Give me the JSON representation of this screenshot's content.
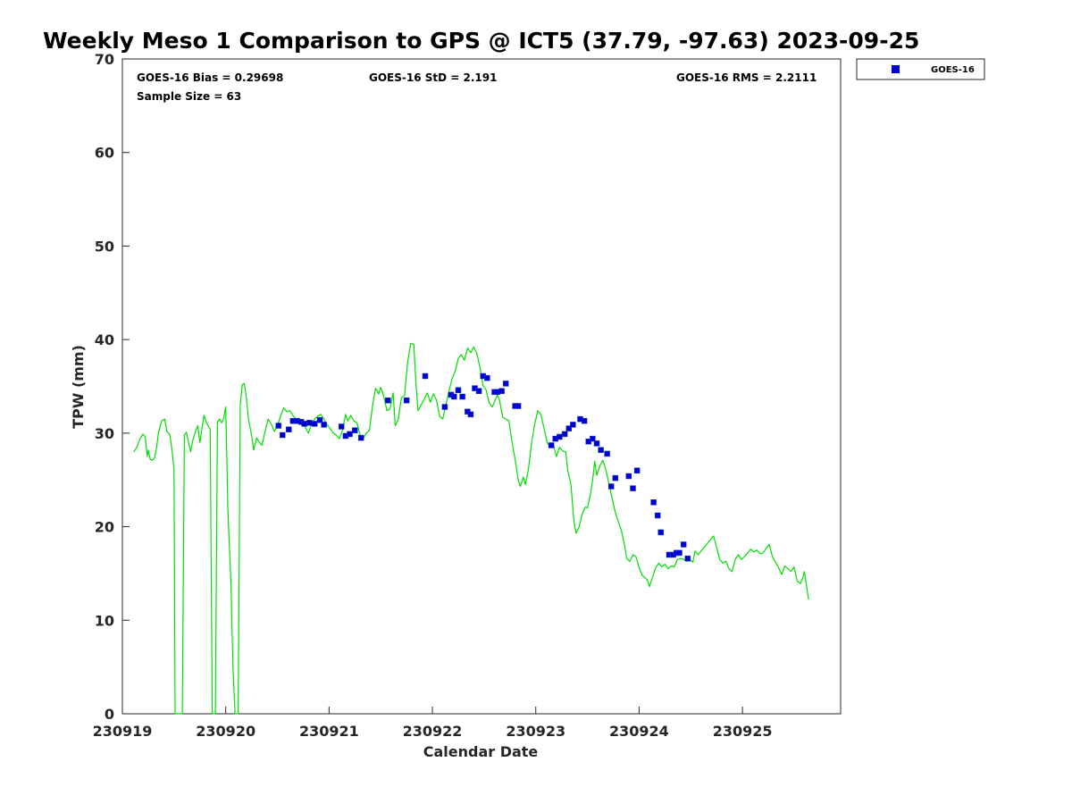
{
  "chart_data": {
    "type": "scatter",
    "title": "Weekly Meso 1 Comparison to GPS @ ICT5 (37.79, -97.63) 2023-09-25",
    "xlabel": "Calendar Date",
    "ylabel": "TPW (mm)",
    "xlim": [
      0,
      6.95
    ],
    "ylim": [
      0,
      70
    ],
    "y_ticks": [
      0,
      10,
      20,
      30,
      40,
      50,
      60,
      70
    ],
    "x_ticks": [
      {
        "value": 0,
        "label": "230919"
      },
      {
        "value": 1,
        "label": "230920"
      },
      {
        "value": 2,
        "label": "230921"
      },
      {
        "value": 3,
        "label": "230922"
      },
      {
        "value": 4,
        "label": "230923"
      },
      {
        "value": 5,
        "label": "230924"
      },
      {
        "value": 6,
        "label": "230925"
      }
    ],
    "stats": {
      "bias": "GOES-16 Bias = 0.29698",
      "std": "GOES-16 StD = 2.191",
      "rms": "GOES-16 RMS = 2.2111",
      "sample": "Sample Size = 63"
    },
    "legend": {
      "label": "GOES-16",
      "position": "top-right",
      "marker_color": "#0000cc"
    },
    "colors": {
      "gps_line": "#00dd00",
      "goes_marker": "#0000cc",
      "goes_marker_edge": "#1a3fd6",
      "axis": "#262626"
    },
    "series": [
      {
        "name": "GPS",
        "style": "line",
        "points": [
          [
            0.11,
            28.0
          ],
          [
            0.14,
            28.5
          ],
          [
            0.17,
            29.4
          ],
          [
            0.2,
            29.9
          ],
          [
            0.22,
            29.6
          ],
          [
            0.24,
            27.5
          ],
          [
            0.25,
            28.2
          ],
          [
            0.27,
            27.2
          ],
          [
            0.29,
            27.1
          ],
          [
            0.31,
            27.3
          ],
          [
            0.33,
            28.4
          ],
          [
            0.35,
            30.1
          ],
          [
            0.38,
            31.3
          ],
          [
            0.41,
            31.5
          ],
          [
            0.43,
            30.2
          ],
          [
            0.46,
            29.8
          ],
          [
            0.48,
            28.2
          ],
          [
            0.5,
            26.1
          ],
          [
            0.51,
            0
          ],
          [
            0.58,
            0
          ],
          [
            0.6,
            29.8
          ],
          [
            0.62,
            30.1
          ],
          [
            0.64,
            29.0
          ],
          [
            0.66,
            28.0
          ],
          [
            0.68,
            29.2
          ],
          [
            0.71,
            30.3
          ],
          [
            0.73,
            30.8
          ],
          [
            0.75,
            29.0
          ],
          [
            0.77,
            30.5
          ],
          [
            0.79,
            31.9
          ],
          [
            0.81,
            31.2
          ],
          [
            0.83,
            30.8
          ],
          [
            0.85,
            30.4
          ],
          [
            0.87,
            0
          ],
          [
            0.9,
            0
          ],
          [
            0.92,
            31.2
          ],
          [
            0.94,
            31.5
          ],
          [
            0.96,
            31.1
          ],
          [
            0.98,
            31.6
          ],
          [
            1.0,
            32.8
          ],
          [
            1.01,
            28.0
          ],
          [
            1.02,
            22.0
          ],
          [
            1.05,
            14.0
          ],
          [
            1.07,
            5.0
          ],
          [
            1.09,
            0
          ],
          [
            1.12,
            0
          ],
          [
            1.14,
            33.0
          ],
          [
            1.16,
            35.2
          ],
          [
            1.18,
            35.3
          ],
          [
            1.2,
            33.8
          ],
          [
            1.22,
            31.5
          ],
          [
            1.25,
            29.8
          ],
          [
            1.27,
            28.2
          ],
          [
            1.3,
            29.5
          ],
          [
            1.32,
            29.1
          ],
          [
            1.35,
            28.7
          ],
          [
            1.38,
            30.1
          ],
          [
            1.41,
            31.5
          ],
          [
            1.44,
            31.0
          ],
          [
            1.47,
            30.2
          ],
          [
            1.5,
            30.8
          ],
          [
            1.53,
            31.8
          ],
          [
            1.56,
            32.7
          ],
          [
            1.59,
            32.3
          ],
          [
            1.62,
            32.4
          ],
          [
            1.65,
            31.9
          ],
          [
            1.68,
            31.5
          ],
          [
            1.71,
            31.6
          ],
          [
            1.74,
            31.1
          ],
          [
            1.77,
            30.6
          ],
          [
            1.8,
            30.0
          ],
          [
            1.83,
            30.9
          ],
          [
            1.86,
            31.5
          ],
          [
            1.89,
            31.8
          ],
          [
            1.92,
            32.0
          ],
          [
            1.95,
            31.5
          ],
          [
            1.98,
            30.9
          ],
          [
            2.01,
            30.5
          ],
          [
            2.04,
            30.0
          ],
          [
            2.07,
            29.8
          ],
          [
            2.1,
            29.4
          ],
          [
            2.13,
            30.3
          ],
          [
            2.16,
            32.0
          ],
          [
            2.18,
            31.3
          ],
          [
            2.21,
            31.9
          ],
          [
            2.24,
            31.3
          ],
          [
            2.27,
            31.1
          ],
          [
            2.3,
            29.8
          ],
          [
            2.33,
            29.4
          ],
          [
            2.36,
            30.0
          ],
          [
            2.39,
            30.3
          ],
          [
            2.42,
            32.9
          ],
          [
            2.45,
            34.8
          ],
          [
            2.48,
            34.2
          ],
          [
            2.5,
            34.9
          ],
          [
            2.53,
            33.9
          ],
          [
            2.56,
            32.4
          ],
          [
            2.59,
            32.6
          ],
          [
            2.62,
            34.3
          ],
          [
            2.64,
            30.8
          ],
          [
            2.67,
            31.5
          ],
          [
            2.7,
            33.8
          ],
          [
            2.73,
            34.0
          ],
          [
            2.76,
            37.6
          ],
          [
            2.79,
            39.6
          ],
          [
            2.82,
            39.5
          ],
          [
            2.84,
            35.5
          ],
          [
            2.86,
            32.4
          ],
          [
            2.89,
            33.0
          ],
          [
            2.92,
            33.6
          ],
          [
            2.95,
            34.3
          ],
          [
            2.98,
            33.3
          ],
          [
            3.01,
            34.2
          ],
          [
            3.04,
            33.5
          ],
          [
            3.07,
            31.8
          ],
          [
            3.1,
            31.5
          ],
          [
            3.13,
            33.0
          ],
          [
            3.16,
            34.5
          ],
          [
            3.19,
            35.8
          ],
          [
            3.22,
            36.6
          ],
          [
            3.25,
            38.0
          ],
          [
            3.28,
            38.4
          ],
          [
            3.31,
            37.8
          ],
          [
            3.34,
            39.1
          ],
          [
            3.37,
            38.6
          ],
          [
            3.4,
            39.2
          ],
          [
            3.43,
            38.5
          ],
          [
            3.46,
            37.0
          ],
          [
            3.49,
            35.1
          ],
          [
            3.52,
            34.6
          ],
          [
            3.55,
            33.2
          ],
          [
            3.58,
            32.8
          ],
          [
            3.61,
            33.6
          ],
          [
            3.63,
            34.1
          ],
          [
            3.65,
            33.5
          ],
          [
            3.68,
            31.7
          ],
          [
            3.71,
            31.5
          ],
          [
            3.74,
            31.3
          ],
          [
            3.77,
            29.1
          ],
          [
            3.8,
            27.2
          ],
          [
            3.83,
            25.0
          ],
          [
            3.85,
            24.3
          ],
          [
            3.88,
            25.3
          ],
          [
            3.9,
            24.5
          ],
          [
            3.93,
            26.2
          ],
          [
            3.96,
            29.0
          ],
          [
            3.99,
            31.0
          ],
          [
            4.02,
            32.4
          ],
          [
            4.05,
            32.0
          ],
          [
            4.08,
            30.5
          ],
          [
            4.11,
            29.0
          ],
          [
            4.14,
            28.5
          ],
          [
            4.17,
            28.8
          ],
          [
            4.2,
            27.5
          ],
          [
            4.23,
            28.5
          ],
          [
            4.26,
            28.1
          ],
          [
            4.29,
            28.0
          ],
          [
            4.31,
            26.0
          ],
          [
            4.34,
            24.5
          ],
          [
            4.37,
            20.5
          ],
          [
            4.39,
            19.3
          ],
          [
            4.42,
            20.0
          ],
          [
            4.45,
            21.4
          ],
          [
            4.48,
            22.1
          ],
          [
            4.5,
            22.0
          ],
          [
            4.53,
            23.5
          ],
          [
            4.55,
            25.0
          ],
          [
            4.57,
            27.0
          ],
          [
            4.59,
            25.5
          ],
          [
            4.62,
            26.5
          ],
          [
            4.65,
            27.1
          ],
          [
            4.68,
            26.0
          ],
          [
            4.71,
            24.5
          ],
          [
            4.74,
            23.0
          ],
          [
            4.77,
            21.5
          ],
          [
            4.8,
            20.5
          ],
          [
            4.83,
            19.5
          ],
          [
            4.86,
            18.0
          ],
          [
            4.88,
            16.6
          ],
          [
            4.91,
            16.3
          ],
          [
            4.94,
            17.0
          ],
          [
            4.97,
            16.8
          ],
          [
            5.0,
            15.6
          ],
          [
            5.03,
            14.8
          ],
          [
            5.06,
            14.5
          ],
          [
            5.08,
            14.3
          ],
          [
            5.1,
            13.6
          ],
          [
            5.13,
            14.6
          ],
          [
            5.16,
            15.6
          ],
          [
            5.19,
            16.1
          ],
          [
            5.22,
            15.7
          ],
          [
            5.25,
            16.0
          ],
          [
            5.28,
            15.5
          ],
          [
            5.31,
            15.8
          ],
          [
            5.34,
            15.7
          ],
          [
            5.37,
            16.5
          ],
          [
            5.4,
            16.6
          ],
          [
            5.43,
            16.5
          ],
          [
            5.46,
            16.3
          ],
          [
            5.49,
            16.5
          ],
          [
            5.52,
            16.2
          ],
          [
            5.54,
            17.4
          ],
          [
            5.57,
            17.0
          ],
          [
            5.6,
            17.4
          ],
          [
            5.63,
            17.8
          ],
          [
            5.66,
            18.2
          ],
          [
            5.69,
            18.6
          ],
          [
            5.72,
            19.0
          ],
          [
            5.75,
            17.8
          ],
          [
            5.78,
            16.5
          ],
          [
            5.81,
            16.1
          ],
          [
            5.84,
            16.3
          ],
          [
            5.87,
            15.5
          ],
          [
            5.9,
            15.2
          ],
          [
            5.93,
            16.5
          ],
          [
            5.96,
            17.0
          ],
          [
            5.99,
            16.5
          ],
          [
            6.02,
            16.8
          ],
          [
            6.05,
            17.2
          ],
          [
            6.08,
            17.6
          ],
          [
            6.11,
            17.3
          ],
          [
            6.14,
            17.5
          ],
          [
            6.17,
            17.1
          ],
          [
            6.2,
            17.2
          ],
          [
            6.23,
            17.7
          ],
          [
            6.26,
            18.1
          ],
          [
            6.29,
            16.8
          ],
          [
            6.32,
            16.2
          ],
          [
            6.35,
            15.6
          ],
          [
            6.38,
            14.9
          ],
          [
            6.41,
            15.8
          ],
          [
            6.44,
            15.5
          ],
          [
            6.47,
            15.2
          ],
          [
            6.5,
            15.7
          ],
          [
            6.53,
            14.2
          ],
          [
            6.56,
            13.9
          ],
          [
            6.58,
            14.4
          ],
          [
            6.6,
            15.2
          ],
          [
            6.62,
            13.7
          ],
          [
            6.64,
            12.2
          ]
        ]
      },
      {
        "name": "GOES-16",
        "style": "marker",
        "points": [
          [
            1.51,
            30.8
          ],
          [
            1.55,
            29.8
          ],
          [
            1.61,
            30.4
          ],
          [
            1.65,
            31.3
          ],
          [
            1.69,
            31.3
          ],
          [
            1.73,
            31.2
          ],
          [
            1.76,
            31.0
          ],
          [
            1.81,
            31.1
          ],
          [
            1.86,
            31.0
          ],
          [
            1.91,
            31.4
          ],
          [
            1.95,
            30.9
          ],
          [
            2.12,
            30.7
          ],
          [
            2.16,
            29.7
          ],
          [
            2.2,
            29.9
          ],
          [
            2.25,
            30.3
          ],
          [
            2.31,
            29.5
          ],
          [
            2.57,
            33.5
          ],
          [
            2.75,
            33.5
          ],
          [
            2.93,
            36.1
          ],
          [
            3.12,
            32.8
          ],
          [
            3.18,
            34.1
          ],
          [
            3.21,
            33.9
          ],
          [
            3.25,
            34.6
          ],
          [
            3.29,
            33.9
          ],
          [
            3.34,
            32.3
          ],
          [
            3.37,
            32.0
          ],
          [
            3.41,
            34.8
          ],
          [
            3.45,
            34.5
          ],
          [
            3.49,
            36.1
          ],
          [
            3.53,
            35.9
          ],
          [
            3.6,
            34.4
          ],
          [
            3.63,
            34.4
          ],
          [
            3.67,
            34.5
          ],
          [
            3.71,
            35.3
          ],
          [
            3.8,
            32.9
          ],
          [
            3.83,
            32.9
          ],
          [
            4.15,
            28.7
          ],
          [
            4.19,
            29.4
          ],
          [
            4.23,
            29.6
          ],
          [
            4.28,
            29.9
          ],
          [
            4.32,
            30.5
          ],
          [
            4.36,
            30.9
          ],
          [
            4.43,
            31.5
          ],
          [
            4.47,
            31.3
          ],
          [
            4.51,
            29.1
          ],
          [
            4.55,
            29.4
          ],
          [
            4.59,
            28.9
          ],
          [
            4.63,
            28.2
          ],
          [
            4.69,
            27.8
          ],
          [
            4.73,
            24.3
          ],
          [
            4.77,
            25.2
          ],
          [
            4.9,
            25.4
          ],
          [
            4.94,
            24.1
          ],
          [
            4.98,
            26.0
          ],
          [
            5.14,
            22.6
          ],
          [
            5.18,
            21.2
          ],
          [
            5.21,
            19.4
          ],
          [
            5.29,
            17.0
          ],
          [
            5.33,
            17.0
          ],
          [
            5.36,
            17.2
          ],
          [
            5.39,
            17.2
          ],
          [
            5.43,
            18.1
          ],
          [
            5.47,
            16.6
          ]
        ]
      }
    ]
  }
}
